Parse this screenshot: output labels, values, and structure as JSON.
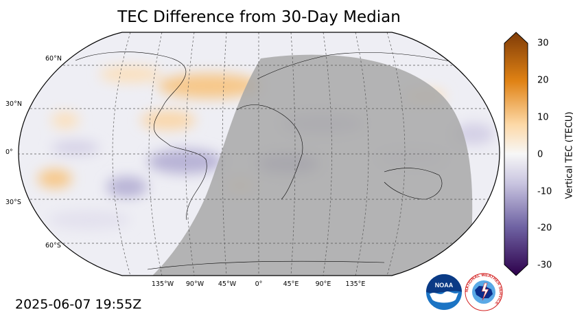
{
  "title": "TEC Difference from 30-Day Median",
  "timestamp": "2025-06-07 19:55Z",
  "latitude_labels": [
    "60°N",
    "30°N",
    "0°",
    "30°S",
    "60°S"
  ],
  "longitude_labels": [
    "135°W",
    "90°W",
    "45°W",
    "0°",
    "45°E",
    "90°E",
    "135°E"
  ],
  "colorbar": {
    "label": "Vertical TEC (TECU)",
    "ticks": [
      "30",
      "20",
      "10",
      "0",
      "-10",
      "-20",
      "-30"
    ],
    "range": [
      -30,
      30
    ],
    "colors": {
      "max": "#7f3b08",
      "high": "#e08214",
      "mid_high": "#fdb863",
      "zero": "#f7f7f7",
      "mid_low": "#b2abd2",
      "low": "#8073ac",
      "min": "#2d004b"
    }
  },
  "night_shade_color": "#a8a8a8",
  "logos": {
    "noaa": "NOAA",
    "nws": "NATIONAL WEATHER SERVICE"
  }
}
